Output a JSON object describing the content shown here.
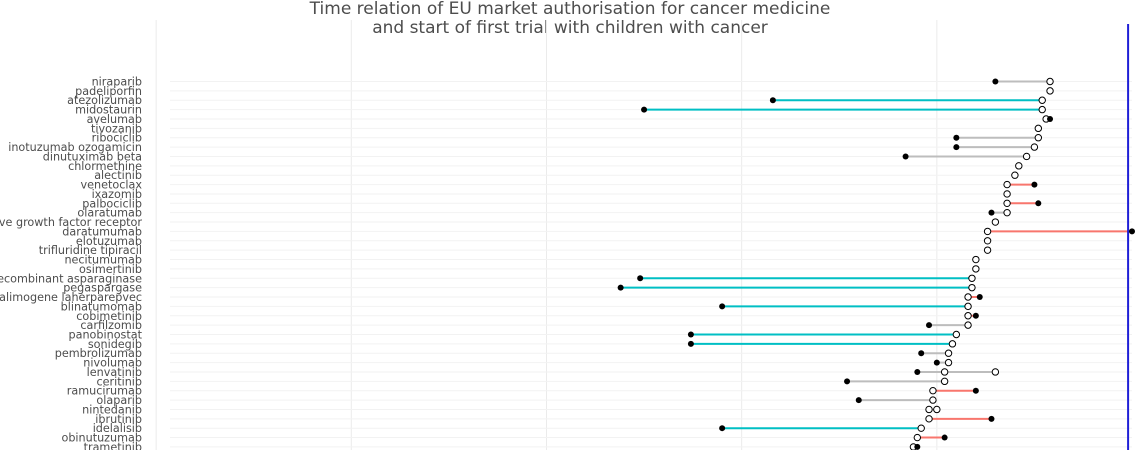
{
  "chart_data": {
    "type": "dumbbell",
    "title_lines": [
      "Time relation of EU market authorisation for cancer medicine",
      "and start of first trial with children with cancer"
    ],
    "xlabel": "",
    "ylabel": "",
    "grid": true,
    "legend": "none",
    "xlim": [
      1991,
      2020
    ],
    "reference_x": 2019.9,
    "series_colors": {
      "trial_after": "#f8766d",
      "trial_before_long": "#00bfc4",
      "trial_before": "#bdbdbd",
      "reference": "#1f1fd6"
    },
    "categories": [
      "niraparib",
      "padeliporfin",
      "atezolizumab",
      "midostaurin",
      "avelumab",
      "tivozanib",
      "ribociclib",
      "inotuzumab ozogamicin",
      "dinutuximab beta",
      "chlormethine",
      "alectinib",
      "venetoclax",
      "ixazomib",
      "palbociclib",
      "olaratumab",
      "ve growth factor receptor",
      "daratumumab",
      "elotuzumab",
      "trifluridine tipiracil",
      "necitumumab",
      "osimertinib",
      "ecombinant asparaginase",
      "pegaspargase",
      "alimogene laherparepvec",
      "blinatumomab",
      "cobimetinib",
      "carfilzomib",
      "panobinostat",
      "sonidegib",
      "pembrolizumab",
      "nivolumab",
      "lenvatinib",
      "ceritinib",
      "ramucirumab",
      "olaparib",
      "nintedanib",
      "ibrutinib",
      "idelalisib",
      "obinutuzumab",
      "trametinib"
    ],
    "authorisation": [
      2017.9,
      2017.9,
      2017.7,
      2017.7,
      2017.8,
      2017.6,
      2017.6,
      2017.5,
      2017.3,
      2017.1,
      2017.0,
      2016.8,
      2016.8,
      2016.8,
      2016.8,
      2016.5,
      2016.3,
      2016.3,
      2016.3,
      2016.0,
      2016.0,
      2015.9,
      2015.9,
      2015.8,
      2015.8,
      2015.8,
      2015.8,
      2015.5,
      2015.4,
      2015.3,
      2015.3,
      2015.2,
      2015.2,
      2014.9,
      2014.9,
      2014.8,
      2014.8,
      2014.6,
      2014.5,
      2014.4
    ],
    "first_trial": [
      2016.5,
      null,
      2010.8,
      2007.5,
      2017.9,
      null,
      2015.5,
      2015.5,
      2014.2,
      null,
      null,
      2017.5,
      null,
      2017.6,
      2016.4,
      null,
      2020.0,
      null,
      null,
      null,
      null,
      2007.4,
      2006.9,
      2016.1,
      2009.5,
      2016.0,
      2014.8,
      2008.7,
      2008.7,
      2014.6,
      2015.0,
      2014.5,
      2012.7,
      2016.0,
      2013.0,
      null,
      2016.4,
      2009.5,
      2015.2,
      2014.5
    ],
    "extra_marker": [
      null,
      null,
      null,
      null,
      null,
      null,
      null,
      null,
      null,
      null,
      null,
      null,
      null,
      null,
      null,
      null,
      null,
      null,
      null,
      null,
      null,
      null,
      null,
      null,
      null,
      null,
      null,
      null,
      null,
      null,
      null,
      2016.5,
      null,
      null,
      null,
      2015.0,
      null,
      null,
      null,
      null
    ]
  }
}
